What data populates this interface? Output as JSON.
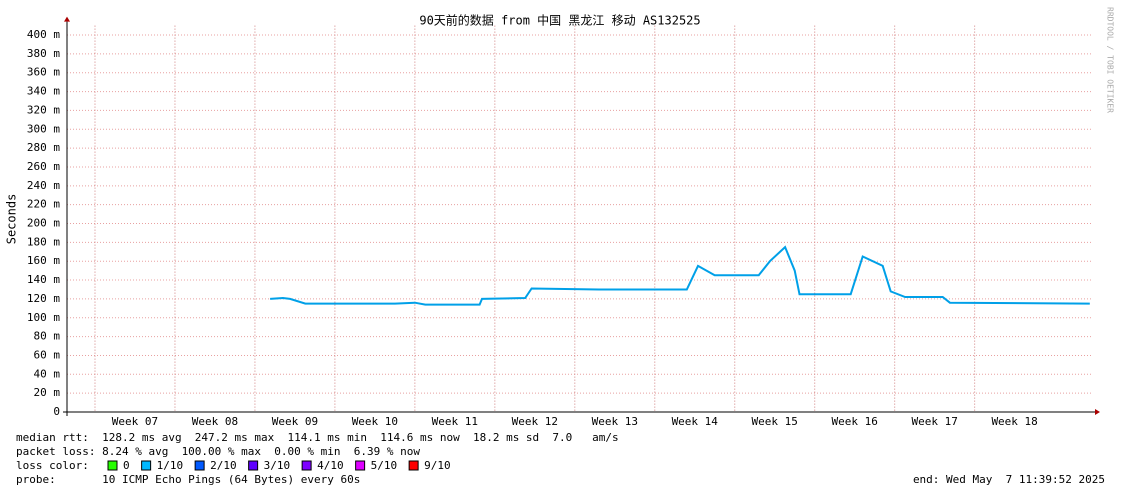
{
  "chart_data": {
    "type": "line",
    "title": "90天前的数据 from 中国 黑龙江 移动 AS132525",
    "y_label": "Seconds",
    "watermark": "RRDTOOL / TOBI OETIKER",
    "xlim": [
      6.65,
      19.48
    ],
    "xticks": [
      {
        "value": 7.5,
        "label": "Week 07"
      },
      {
        "value": 8.5,
        "label": "Week 08"
      },
      {
        "value": 9.5,
        "label": "Week 09"
      },
      {
        "value": 10.5,
        "label": "Week 10"
      },
      {
        "value": 11.5,
        "label": "Week 11"
      },
      {
        "value": 12.5,
        "label": "Week 12"
      },
      {
        "value": 13.5,
        "label": "Week 13"
      },
      {
        "value": 14.5,
        "label": "Week 14"
      },
      {
        "value": 15.5,
        "label": "Week 15"
      },
      {
        "value": 16.5,
        "label": "Week 16"
      },
      {
        "value": 17.5,
        "label": "Week 17"
      },
      {
        "value": 18.5,
        "label": "Week 18"
      }
    ],
    "ylim": [
      0,
      0.41
    ],
    "yticks": [
      0,
      {
        "value": 0.02,
        "label": "20 m"
      },
      {
        "value": 0.04,
        "label": "40 m"
      },
      {
        "value": 0.06,
        "label": "60 m"
      },
      {
        "value": 0.08,
        "label": "80 m"
      },
      {
        "value": 0.1,
        "label": "100 m"
      },
      {
        "value": 0.12,
        "label": "120 m"
      },
      {
        "value": 0.14,
        "label": "140 m"
      },
      {
        "value": 0.16,
        "label": "160 m"
      },
      {
        "value": 0.18,
        "label": "180 m"
      },
      {
        "value": 0.2,
        "label": "200 m"
      },
      {
        "value": 0.22,
        "label": "220 m"
      },
      {
        "value": 0.24,
        "label": "240 m"
      },
      {
        "value": 0.26,
        "label": "260 m"
      },
      {
        "value": 0.28,
        "label": "280 m"
      },
      {
        "value": 0.3,
        "label": "300 m"
      },
      {
        "value": 0.32,
        "label": "320 m"
      },
      {
        "value": 0.34,
        "label": "340 m"
      },
      {
        "value": 0.36,
        "label": "360 m"
      },
      {
        "value": 0.38,
        "label": "380 m"
      },
      {
        "value": 0.4,
        "label": "400 m"
      }
    ],
    "grid": true,
    "x": [
      9.19,
      9.35,
      9.44,
      9.63,
      10.75,
      11.0,
      11.13,
      11.81,
      11.84,
      12.38,
      12.46,
      13.3,
      14.4,
      14.54,
      14.75,
      15.3,
      15.44,
      15.63,
      15.75,
      15.81,
      16.45,
      16.6,
      16.85,
      16.95,
      17.13,
      17.6,
      17.69,
      19.44
    ],
    "series": [
      {
        "name": "median rtt",
        "color": "#00a0e8",
        "values": [
          0.12,
          0.121,
          0.12,
          0.115,
          0.115,
          0.116,
          0.114,
          0.114,
          0.12,
          0.121,
          0.131,
          0.13,
          0.13,
          0.155,
          0.145,
          0.145,
          0.16,
          0.175,
          0.15,
          0.125,
          0.125,
          0.165,
          0.155,
          0.128,
          0.122,
          0.122,
          0.116,
          0.115
        ]
      }
    ],
    "stats": [
      "median rtt:  128.2 ms avg  247.2 ms max  114.1 ms min  114.6 ms now  18.2 ms sd  7.0   am/s",
      "packet loss: 8.24 % avg  100.00 % max  0.00 % min  6.39 % now"
    ],
    "loss_color_label": "loss color:",
    "loss_colors": [
      {
        "label": "0",
        "color": "#26ff00"
      },
      {
        "label": "1/10",
        "color": "#00b8ff"
      },
      {
        "label": "2/10",
        "color": "#0059ff"
      },
      {
        "label": "3/10",
        "color": "#5e00ff"
      },
      {
        "label": "4/10",
        "color": "#7e00ff"
      },
      {
        "label": "5/10",
        "color": "#dd00ff"
      },
      {
        "label": "9/10",
        "color": "#ff0000"
      }
    ],
    "probe": "probe:       10 ICMP Echo Pings (64 Bytes) every 60s",
    "end": "end: Wed May  7 11:39:52 2025"
  }
}
